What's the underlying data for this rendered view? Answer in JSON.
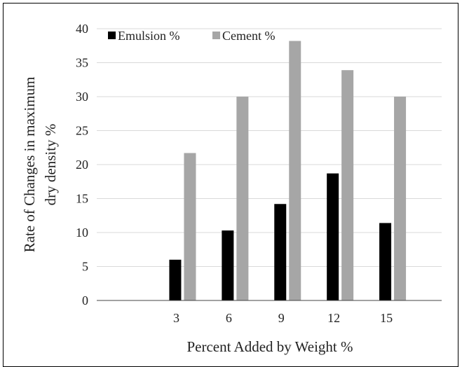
{
  "chart_data": {
    "type": "bar",
    "categories": [
      "3",
      "6",
      "9",
      "12",
      "15"
    ],
    "series": [
      {
        "name": "Emulsion %",
        "color": "#000000",
        "values": [
          6,
          10.3,
          14.2,
          18.7,
          11.4
        ]
      },
      {
        "name": "Cement %",
        "color": "#a6a6a6",
        "values": [
          21.7,
          30,
          38.2,
          33.9,
          30
        ]
      }
    ],
    "title": "",
    "xlabel": "Percent Added by Weight %",
    "ylabel": "Rate of Changes in maximum dry density %",
    "ylabel_lines": [
      "Rate of Changes in maximum",
      "dry density %"
    ],
    "ylim": [
      0,
      40
    ],
    "yticks": [
      0,
      5,
      10,
      15,
      20,
      25,
      30,
      35,
      40
    ],
    "grid": true,
    "legend_position": "top-left"
  }
}
